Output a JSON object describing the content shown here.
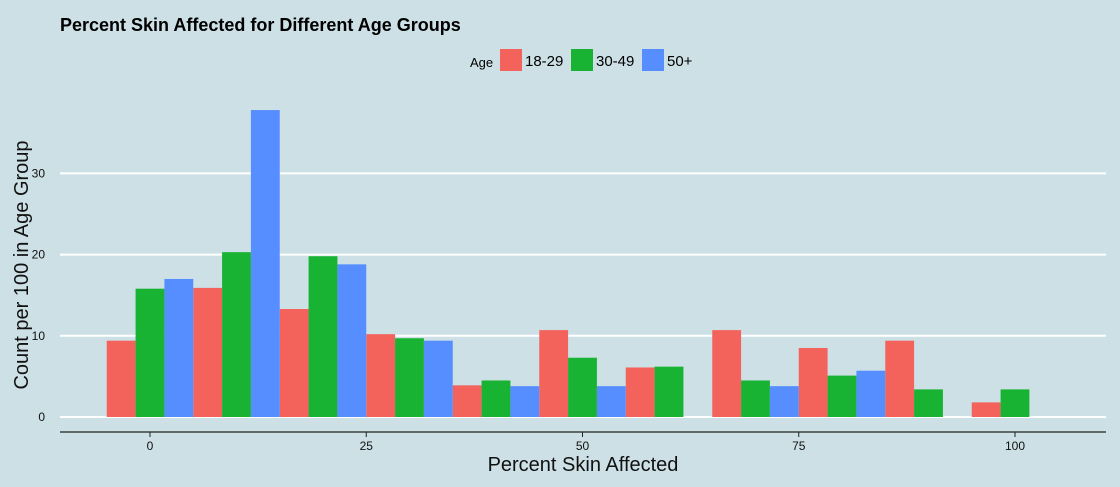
{
  "chart_data": {
    "type": "bar",
    "title": "Percent Skin Affected for Different Age Groups",
    "xlabel": "Percent Skin Affected",
    "ylabel": "Count per 100 in Age Group",
    "legend": {
      "title": "Age",
      "placement": "top-center"
    },
    "xlim": [
      -10,
      110
    ],
    "ylim": [
      0,
      38
    ],
    "x_ticks": [
      0,
      25,
      50,
      75,
      100
    ],
    "y_ticks": [
      0,
      10,
      20,
      30
    ],
    "grid": "horizontal",
    "bin_width": 10,
    "bin_centers": [
      0,
      10,
      20,
      30,
      40,
      50,
      60,
      70,
      80,
      90,
      100
    ],
    "series": [
      {
        "name": "18-29",
        "color": "#f4625c",
        "values": [
          9.4,
          15.9,
          13.3,
          10.2,
          3.9,
          10.7,
          6.1,
          10.7,
          8.5,
          9.4,
          1.8
        ]
      },
      {
        "name": "30-49",
        "color": "#19b333",
        "values": [
          15.8,
          20.3,
          19.8,
          9.7,
          4.5,
          7.3,
          6.2,
          4.5,
          5.1,
          3.4,
          3.4
        ]
      },
      {
        "name": "50+",
        "color": "#568eff",
        "values": [
          17.0,
          37.8,
          18.8,
          9.4,
          3.8,
          3.8,
          null,
          3.8,
          5.7,
          null,
          null
        ]
      }
    ]
  }
}
